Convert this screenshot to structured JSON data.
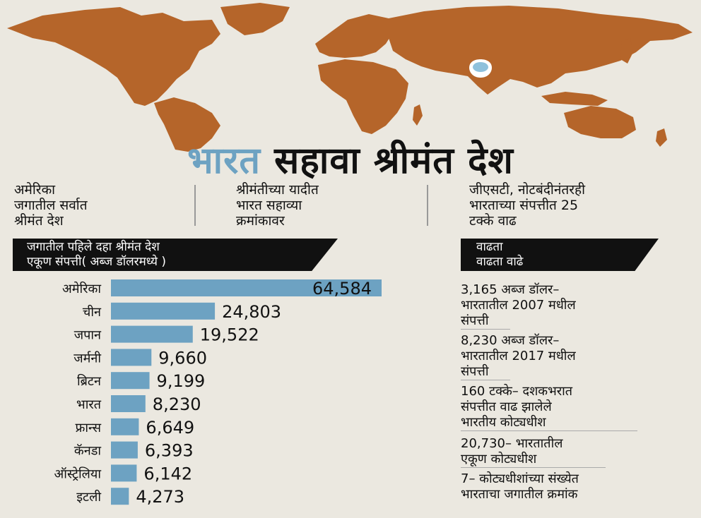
{
  "headline": {
    "accent": "भारत",
    "main": "सहावा श्रीमंत देश"
  },
  "facts": [
    {
      "lines": [
        "अमेरिका",
        "जगातील सर्वात",
        "श्रीमंत देश"
      ]
    },
    {
      "lines": [
        "श्रीमंतीच्या यादीत",
        "भारत सहाव्या",
        "क्रमांकावर"
      ]
    },
    {
      "lines": [
        "जीएसटी, नोटबंदीनंतरही",
        "भारताच्या संपत्तीत 25",
        "टक्के वाढ"
      ]
    }
  ],
  "chart_header": {
    "line1": "जगातील पहिले दहा श्रीमंत देश",
    "line2": "एकूण संपत्ती( अब्ज डॉलरमध्ये )"
  },
  "side_header": {
    "line1": "वाढता",
    "line2": "वाढता वाढे"
  },
  "side_items": [
    {
      "lines": [
        "3,165 अब्ज डॉलर–",
        "भारतातील 2007 मधील",
        "संपत्ती"
      ]
    },
    {
      "lines": [
        "8,230 अब्ज डॉलर–",
        "भारतातील 2017 मधील",
        "संपत्ती"
      ]
    },
    {
      "lines": [
        "160 टक्के– दशकभरात",
        "संपत्तीत वाढ झालेले",
        "भारतीय कोट्यधीश"
      ]
    },
    {
      "lines": [
        "20,730– भारतातील",
        "एकूण कोट्यधीश"
      ]
    },
    {
      "lines": [
        "7– कोट्यधीशांच्या संख्येत",
        "भारताचा जगातील क्रमांक"
      ]
    }
  ],
  "colors": {
    "bar": "#6da2c2",
    "map": "#b5652a",
    "pin": "#8fc1dc",
    "background": "#ebe8e0"
  },
  "map_marker": {
    "icon": "location-pin-icon",
    "country": "भारत"
  },
  "chart_data": {
    "type": "bar",
    "orientation": "horizontal",
    "categories": [
      "अमेरिका",
      "चीन",
      "जपान",
      "जर्मनी",
      "ब्रिटन",
      "भारत",
      "फ्रान्स",
      "कॅनडा",
      "ऑस्ट्रेलिया",
      "इटली"
    ],
    "values": [
      64584,
      24803,
      19522,
      9660,
      9199,
      8230,
      6649,
      6393,
      6142,
      4273
    ],
    "value_labels": [
      "64,584",
      "24,803",
      "19,522",
      "9,660",
      "9,199",
      "8,230",
      "6,649",
      "6,393",
      "6,142",
      "4,273"
    ],
    "title": "जगातील पहिले दहा श्रीमंत देश",
    "subtitle": "एकूण संपत्ती( अब्ज डॉलरमध्ये )",
    "xlim": [
      0,
      64584
    ],
    "grid": false,
    "legend": "none"
  }
}
